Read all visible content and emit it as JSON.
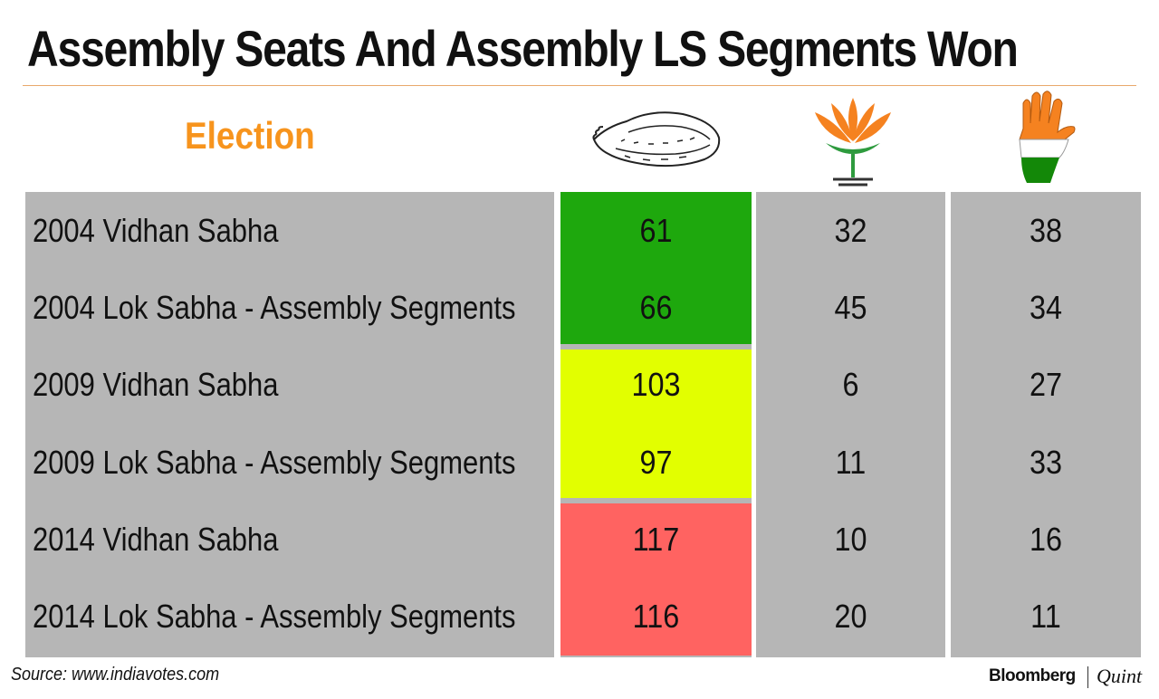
{
  "title": "Assembly Seats And Assembly LS Segments Won",
  "header": {
    "election_label": "Election",
    "party_icons": [
      "conch-shell-icon",
      "lotus-icon",
      "hand-icon"
    ]
  },
  "chart_data": {
    "type": "table",
    "title": "Assembly Seats And Assembly LS Segments Won",
    "columns": [
      "Election",
      "conch-shell-icon",
      "lotus-icon",
      "hand-icon"
    ],
    "rows": [
      {
        "election": "2004 Vidhan Sabha",
        "values": [
          "61",
          "32",
          "38"
        ]
      },
      {
        "election": "2004 Lok Sabha - Assembly Segments",
        "values": [
          "66",
          "45",
          "34"
        ]
      },
      {
        "election": "2009 Vidhan Sabha",
        "values": [
          "103",
          "6",
          "27"
        ]
      },
      {
        "election": "2009 Lok Sabha - Assembly Segments",
        "values": [
          "97",
          "11",
          "33"
        ]
      },
      {
        "election": "2014 Vidhan Sabha",
        "values": [
          "117",
          "10",
          "16"
        ]
      },
      {
        "election": "2014 Lok Sabha - Assembly Segments",
        "values": [
          "116",
          "20",
          "11"
        ]
      }
    ],
    "highlight_colors": [
      "#1ea80d",
      "#e2ff00",
      "#ff6361"
    ],
    "base_color": "#b6b6b6"
  },
  "source": "Source: www.indiavotes.com",
  "brand": {
    "primary": "Bloomberg",
    "secondary": "Quint"
  }
}
